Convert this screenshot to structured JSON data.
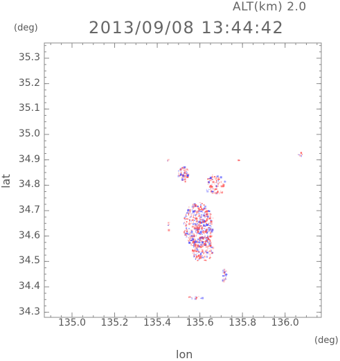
{
  "header": {
    "altitude": "ALT(km) 2.0",
    "timestamp": "2013/09/08 13:44:42"
  },
  "axes": {
    "y_unit": "(deg)",
    "x_unit": "(deg)",
    "x_label": "lon",
    "y_label": "lat"
  },
  "chart_data": {
    "type": "scatter",
    "xlabel": "lon",
    "ylabel": "lat",
    "xlim": [
      134.87,
      136.17
    ],
    "ylim": [
      34.28,
      35.36
    ],
    "x_ticks": [
      "135.0",
      "135.2",
      "135.4",
      "135.6",
      "135.8",
      "136.0"
    ],
    "y_ticks": [
      "34.3",
      "34.4",
      "34.5",
      "34.6",
      "34.7",
      "34.8",
      "34.9",
      "35.0",
      "35.1",
      "35.2",
      "35.3"
    ],
    "colors": {
      "positive": "#ff5050",
      "negative": "#5050ff"
    },
    "clusters": [
      {
        "lon": 135.59,
        "lat": 34.645,
        "rx": 0.07,
        "ry": 0.09,
        "n": 420
      },
      {
        "lon": 135.61,
        "lat": 34.55,
        "rx": 0.05,
        "ry": 0.05,
        "n": 130
      },
      {
        "lon": 135.52,
        "lat": 34.845,
        "rx": 0.025,
        "ry": 0.03,
        "n": 60
      },
      {
        "lon": 135.67,
        "lat": 34.805,
        "rx": 0.05,
        "ry": 0.04,
        "n": 80
      },
      {
        "lon": 135.71,
        "lat": 34.45,
        "rx": 0.012,
        "ry": 0.03,
        "n": 25
      },
      {
        "lon": 135.58,
        "lat": 34.36,
        "rx": 0.04,
        "ry": 0.005,
        "n": 14
      },
      {
        "lon": 136.07,
        "lat": 34.925,
        "rx": 0.012,
        "ry": 0.008,
        "n": 8
      },
      {
        "lon": 135.45,
        "lat": 34.64,
        "rx": 0.006,
        "ry": 0.015,
        "n": 6
      },
      {
        "lon": 135.45,
        "lat": 34.9,
        "rx": 0.004,
        "ry": 0.004,
        "n": 3
      },
      {
        "lon": 135.78,
        "lat": 34.9,
        "rx": 0.004,
        "ry": 0.004,
        "n": 3
      }
    ]
  }
}
